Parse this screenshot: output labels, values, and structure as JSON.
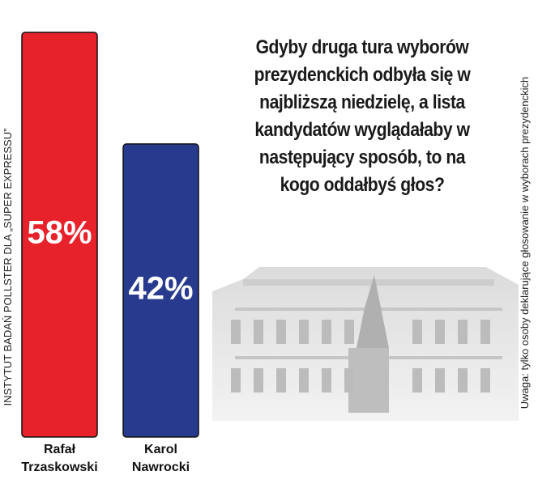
{
  "chart_data": {
    "type": "bar",
    "title": "Gdyby druga tura wyborów prezydenckich odbyła się w najbliższą niedzielę, a lista kandydatów wyglądałaby w następujący sposób, to na kogo oddałbyś głos?",
    "categories": [
      "Rafał Trzaskowski",
      "Karol Nawrocki"
    ],
    "values": [
      58,
      42
    ],
    "value_labels": [
      "58%",
      "42%"
    ],
    "colors": [
      "#e8222b",
      "#283a8e"
    ],
    "source": "INSTYTUT BADAŃ POLLSTER DLA „SUPER EXPRESSU”",
    "note": "Uwaga: tylko osoby deklarujące głosowanie w wyborach prezydenckich"
  }
}
